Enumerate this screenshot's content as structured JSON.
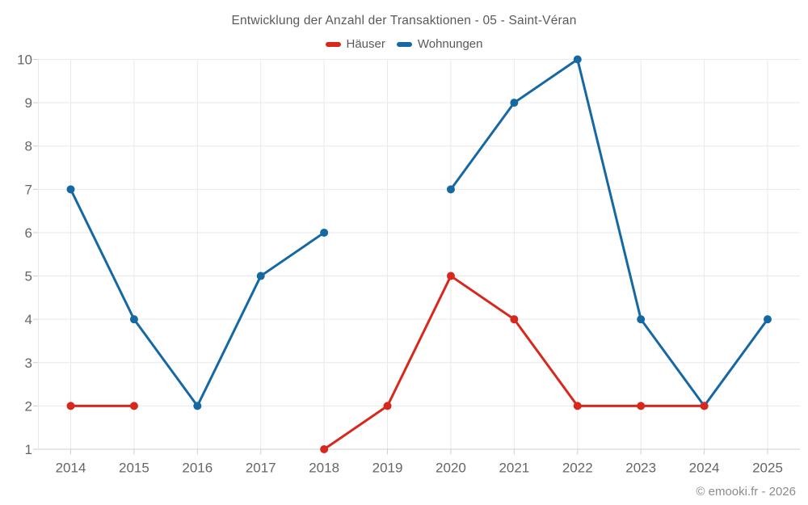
{
  "chart_data": {
    "type": "line",
    "title": "Entwicklung der Anzahl der Transaktionen - 05 - Saint-Véran",
    "categories": [
      "2014",
      "2015",
      "2016",
      "2017",
      "2018",
      "2019",
      "2020",
      "2021",
      "2022",
      "2023",
      "2024",
      "2025"
    ],
    "series": [
      {
        "name": "Häuser",
        "color": "#d7281e",
        "values": [
          2,
          2,
          null,
          null,
          1,
          2,
          5,
          4,
          2,
          2,
          2,
          null
        ]
      },
      {
        "name": "Wohnungen",
        "color": "#1668a3",
        "values": [
          7,
          4,
          2,
          5,
          6,
          null,
          7,
          9,
          10,
          4,
          2,
          4
        ]
      }
    ],
    "ylim": [
      1,
      10
    ],
    "y_ticks": [
      1,
      2,
      3,
      4,
      5,
      6,
      7,
      8,
      9,
      10
    ],
    "grid": true,
    "legend_position": "top",
    "marker": "circle"
  },
  "footer": {
    "watermark": "© emooki.fr - 2026"
  },
  "colors": {
    "background": "#ffffff",
    "grid": "#e9e9e9",
    "axis_line": "#cfcfcf",
    "tick": "#cfcfcf",
    "axis_label": "#666666",
    "title_text": "#595959",
    "legend_text": "#595959",
    "watermark_text": "#8c8c8c"
  }
}
